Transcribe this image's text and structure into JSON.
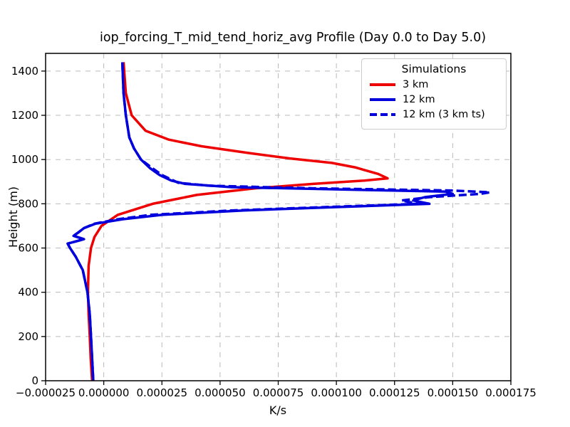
{
  "chart_data": {
    "type": "line",
    "title": "iop_forcing_T_mid_tend_horiz_avg Profile (Day 0.0 to Day 5.0)",
    "xlabel": "K/s",
    "ylabel": "Height (m)",
    "xlim": [
      -2.5e-05,
      0.000175
    ],
    "ylim": [
      0,
      1480
    ],
    "grid": true,
    "grid_style": "dashed",
    "grid_color": "#bbbbbb",
    "x_ticks": {
      "values": [
        -2.5e-05,
        0.0,
        2.5e-05,
        5e-05,
        7.5e-05,
        0.0001,
        0.000125,
        0.00015,
        0.000175
      ],
      "labels": [
        "−0.000025",
        "0.000000",
        "0.000025",
        "0.000050",
        "0.000075",
        "0.000100",
        "0.000125",
        "0.000150",
        "0.000175"
      ]
    },
    "y_ticks": {
      "values": [
        0,
        200,
        400,
        600,
        800,
        1000,
        1200,
        1400
      ],
      "labels": [
        "0",
        "200",
        "400",
        "600",
        "800",
        "1000",
        "1200",
        "1400"
      ]
    },
    "legend": {
      "title": "Simulations",
      "position": "upper right"
    },
    "series": [
      {
        "name": "3 km",
        "color": "#ee0000",
        "style": "solid",
        "points": [
          [
            -5e-06,
            0
          ],
          [
            -5.6e-06,
            100
          ],
          [
            -6e-06,
            200
          ],
          [
            -6.5e-06,
            300
          ],
          [
            -6.8e-06,
            400
          ],
          [
            -6.5e-06,
            520
          ],
          [
            -5.5e-06,
            600
          ],
          [
            -4e-06,
            650
          ],
          [
            -1e-06,
            700
          ],
          [
            6e-06,
            750
          ],
          [
            2.1e-05,
            800
          ],
          [
            4e-05,
            840
          ],
          [
            6.5e-05,
            870
          ],
          [
            9e-05,
            890
          ],
          [
            0.000112,
            905
          ],
          [
            0.000122,
            915
          ],
          [
            0.000118,
            935
          ],
          [
            0.000108,
            965
          ],
          [
            9.8e-05,
            985
          ],
          [
            8e-05,
            1005
          ],
          [
            6.2e-05,
            1030
          ],
          [
            4.2e-05,
            1060
          ],
          [
            2.8e-05,
            1090
          ],
          [
            1.8e-05,
            1130
          ],
          [
            1.2e-05,
            1200
          ],
          [
            9.5e-06,
            1300
          ],
          [
            8.5e-06,
            1440
          ]
        ]
      },
      {
        "name": "12 km",
        "color": "#0000dd",
        "style": "solid",
        "points": [
          [
            -4.5e-06,
            0
          ],
          [
            -5e-06,
            100
          ],
          [
            -5.5e-06,
            200
          ],
          [
            -6e-06,
            300
          ],
          [
            -7e-06,
            400
          ],
          [
            -9e-06,
            500
          ],
          [
            -1.2e-05,
            560
          ],
          [
            -1.45e-05,
            600
          ],
          [
            -1.55e-05,
            620
          ],
          [
            -8.5e-06,
            640
          ],
          [
            -1.3e-05,
            655
          ],
          [
            -1.1e-05,
            670
          ],
          [
            -8.5e-06,
            690
          ],
          [
            -3.5e-06,
            710
          ],
          [
            8e-06,
            730
          ],
          [
            2.5e-05,
            750
          ],
          [
            6e-05,
            770
          ],
          [
            0.0001,
            785
          ],
          [
            0.00014,
            800
          ],
          [
            0.000133,
            815
          ],
          [
            0.000138,
            830
          ],
          [
            0.00015,
            845
          ],
          [
            0.000147,
            855
          ],
          [
            0.000115,
            862
          ],
          [
            5.5e-05,
            875
          ],
          [
            3.5e-05,
            890
          ],
          [
            2.9e-05,
            905
          ],
          [
            2.4e-05,
            930
          ],
          [
            2e-05,
            960
          ],
          [
            1.6e-05,
            1000
          ],
          [
            1.3e-05,
            1050
          ],
          [
            1.1e-05,
            1100
          ],
          [
            9.5e-06,
            1200
          ],
          [
            8.5e-06,
            1300
          ],
          [
            8e-06,
            1440
          ]
        ]
      },
      {
        "name": "12 km (3 km ts)",
        "color": "#0000dd",
        "style": "dashed",
        "points": [
          [
            -4.5e-06,
            0
          ],
          [
            -5e-06,
            100
          ],
          [
            -5.5e-06,
            200
          ],
          [
            -6e-06,
            300
          ],
          [
            -7e-06,
            400
          ],
          [
            -9e-06,
            500
          ],
          [
            -1.2e-05,
            560
          ],
          [
            -1.45e-05,
            600
          ],
          [
            -1.55e-05,
            620
          ],
          [
            -8.5e-06,
            640
          ],
          [
            -1.3e-05,
            655
          ],
          [
            -1.1e-05,
            670
          ],
          [
            -8.5e-06,
            690
          ],
          [
            -4e-06,
            710
          ],
          [
            6e-06,
            730
          ],
          [
            2e-05,
            750
          ],
          [
            5.5e-05,
            770
          ],
          [
            9.5e-05,
            785
          ],
          [
            0.000135,
            800
          ],
          [
            0.000128,
            815
          ],
          [
            0.00014,
            830
          ],
          [
            0.000162,
            845
          ],
          [
            0.000166,
            852
          ],
          [
            0.00015,
            860
          ],
          [
            9e-05,
            870
          ],
          [
            4.5e-05,
            882
          ],
          [
            3.2e-05,
            895
          ],
          [
            2.9e-05,
            910
          ],
          [
            2.5e-05,
            930
          ],
          [
            2.1e-05,
            960
          ],
          [
            1.6e-05,
            1000
          ],
          [
            1.3e-05,
            1050
          ],
          [
            1.1e-05,
            1100
          ],
          [
            9.5e-06,
            1200
          ],
          [
            8.5e-06,
            1300
          ],
          [
            8e-06,
            1440
          ]
        ]
      }
    ]
  }
}
